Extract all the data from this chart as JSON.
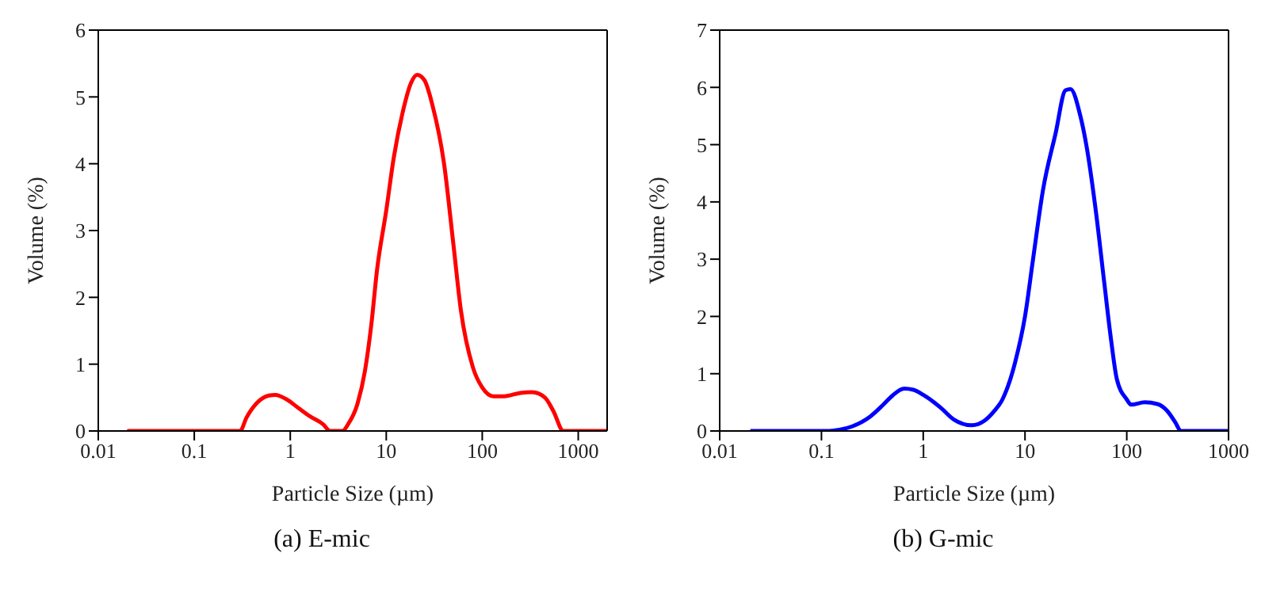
{
  "chart_data": [
    {
      "type": "line",
      "title": "(a) E-mic",
      "xlabel": "Particle Size (µm)",
      "ylabel": "Volume (%)",
      "log": "x",
      "xlim": [
        0.01,
        2000
      ],
      "xticks": [
        0.01,
        0.1,
        1,
        10,
        100,
        1000
      ],
      "ylim": [
        0,
        6
      ],
      "yticks": [
        0,
        1,
        2,
        3,
        4,
        5,
        6
      ],
      "marker": "none",
      "line_style": "solid",
      "series": [
        {
          "color": "#ff0000",
          "x": [
            0.02,
            0.3,
            0.35,
            0.45,
            0.6,
            0.7,
            0.9,
            1.2,
            1.6,
            2.2,
            2.6,
            3.5,
            4,
            5,
            6,
            7,
            8,
            10,
            12,
            15,
            18,
            21,
            25,
            30,
            40,
            50,
            60,
            80,
            100,
            130,
            170,
            250,
            330,
            450,
            550,
            700,
            2000
          ],
          "values": [
            0,
            0,
            0.2,
            0.42,
            0.53,
            0.54,
            0.48,
            0.35,
            0.22,
            0.1,
            0,
            0,
            0.1,
            0.4,
            0.9,
            1.6,
            2.4,
            3.3,
            4.1,
            4.8,
            5.2,
            5.33,
            5.25,
            4.9,
            4.0,
            2.8,
            1.8,
            0.95,
            0.65,
            0.52,
            0.52,
            0.57,
            0.58,
            0.5,
            0.3,
            0,
            0
          ]
        }
      ]
    },
    {
      "type": "line",
      "title": "(b) G-mic",
      "xlabel": "Particle Size (µm)",
      "ylabel": "Volume (%)",
      "log": "x",
      "xlim": [
        0.01,
        1000
      ],
      "xticks": [
        0.01,
        0.1,
        1,
        10,
        100,
        1000
      ],
      "ylim": [
        0,
        7
      ],
      "yticks": [
        0,
        1,
        2,
        3,
        4,
        5,
        6,
        7
      ],
      "marker": "none",
      "line_style": "solid",
      "series": [
        {
          "color": "#0000ff",
          "x": [
            0.02,
            0.12,
            0.15,
            0.2,
            0.3,
            0.4,
            0.5,
            0.65,
            0.8,
            1,
            1.5,
            2,
            3,
            4,
            5,
            6,
            8,
            10,
            12,
            15,
            20,
            25,
            28,
            35,
            40,
            50,
            60,
            70,
            80,
            100,
            110,
            150,
            200,
            250,
            300,
            340,
            1000
          ],
          "values": [
            0,
            0,
            0.02,
            0.08,
            0.25,
            0.45,
            0.62,
            0.74,
            0.72,
            0.63,
            0.4,
            0.2,
            0.1,
            0.18,
            0.35,
            0.55,
            1.2,
            2.0,
            3.0,
            4.2,
            5.2,
            5.95,
            5.97,
            5.5,
            5.0,
            3.8,
            2.6,
            1.6,
            0.9,
            0.55,
            0.46,
            0.5,
            0.47,
            0.35,
            0.15,
            0,
            0
          ]
        }
      ]
    }
  ]
}
